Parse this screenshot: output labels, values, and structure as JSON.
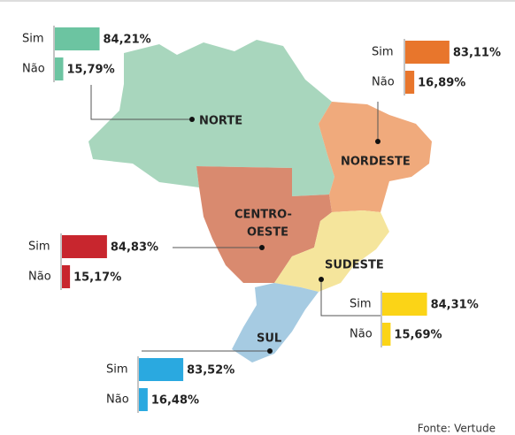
{
  "regions": [
    {
      "name_lines": [
        "NORTE"
      ],
      "categories": [
        "Sim",
        "Não"
      ],
      "values": [
        84.21,
        15.79
      ],
      "value_labels": [
        "84,21%",
        "15,79%"
      ],
      "color": "#6cc4a1"
    },
    {
      "name_lines": [
        "NORDESTE"
      ],
      "categories": [
        "Sim",
        "Não"
      ],
      "values": [
        83.11,
        16.89
      ],
      "value_labels": [
        "83,11%",
        "16,89%"
      ],
      "color": "#e8762c"
    },
    {
      "name_lines": [
        "CENTRO-",
        "OESTE"
      ],
      "categories": [
        "Sim",
        "Não"
      ],
      "values": [
        84.83,
        15.17
      ],
      "value_labels": [
        "84,83%",
        "15,17%"
      ],
      "color": "#c8262e"
    },
    {
      "name_lines": [
        "SUDESTE"
      ],
      "categories": [
        "Sim",
        "Não"
      ],
      "values": [
        84.31,
        15.69
      ],
      "value_labels": [
        "84,31%",
        "15,69%"
      ],
      "color": "#fbd417"
    },
    {
      "name_lines": [
        "SUL"
      ],
      "categories": [
        "Sim",
        "Não"
      ],
      "values": [
        83.52,
        16.48
      ],
      "value_labels": [
        "83,52%",
        "16,48%"
      ],
      "color": "#2aa9e0"
    }
  ],
  "source": "Fonte: Vertude"
}
